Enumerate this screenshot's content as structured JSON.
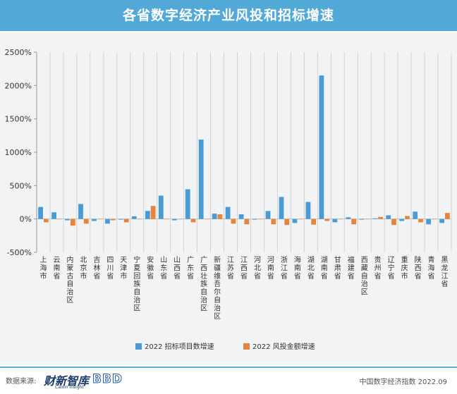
{
  "header": {
    "title": "各省数字经济产业风投和招标增速"
  },
  "footer": {
    "source_label": "数据来源:",
    "logo_primary": "财新智库",
    "logo_primary_sub": "Caixin Insight",
    "logo_secondary": "BBD",
    "note": "中国数字经济指数 2022.09"
  },
  "chart_data": {
    "type": "bar",
    "title": "各省数字经济产业风投和招标增速",
    "xlabel": "",
    "ylabel": "",
    "ylim": [
      -500,
      2500
    ],
    "yticks": [
      -500,
      0,
      500,
      1000,
      1500,
      2000,
      2500
    ],
    "ytick_labels": [
      "-500%",
      "0%",
      "500%",
      "1000%",
      "1500%",
      "2000%",
      "2500%"
    ],
    "grid": {
      "vertical": true,
      "horizontal": false
    },
    "legend_position": "bottom",
    "categories": [
      "上海市",
      "云南省",
      "内蒙古自治区",
      "北京市",
      "吉林省",
      "四川省",
      "天津市",
      "宁夏回族自治区",
      "安徽省",
      "山东省",
      "山西省",
      "广东省",
      "广西壮族自治区",
      "新疆维吾尔自治区",
      "江苏省",
      "江西省",
      "河北省",
      "河南省",
      "浙江省",
      "海南省",
      "湖北省",
      "湖南省",
      "甘肃省",
      "福建省",
      "西藏自治区",
      "贵州省",
      "辽宁省",
      "重庆市",
      "陕西省",
      "青海省",
      "黑龙江省"
    ],
    "series": [
      {
        "name": "2022 招标项目数增速",
        "color": "#4a9bd4",
        "values": [
          180,
          100,
          -20,
          225,
          -30,
          -70,
          -10,
          40,
          120,
          350,
          -20,
          445,
          1190,
          80,
          180,
          70,
          -10,
          120,
          330,
          -60,
          255,
          2150,
          -50,
          25,
          -10,
          10,
          55,
          -30,
          110,
          -80,
          -60
        ]
      },
      {
        "name": "2022 风投金额增速",
        "color": "#e8843a",
        "values": [
          -50,
          0,
          -100,
          -70,
          0,
          -20,
          -50,
          0,
          195,
          0,
          0,
          -50,
          0,
          70,
          -70,
          -80,
          0,
          -80,
          -90,
          0,
          -85,
          -30,
          0,
          -80,
          0,
          30,
          -90,
          45,
          -50,
          0,
          90
        ]
      }
    ]
  }
}
